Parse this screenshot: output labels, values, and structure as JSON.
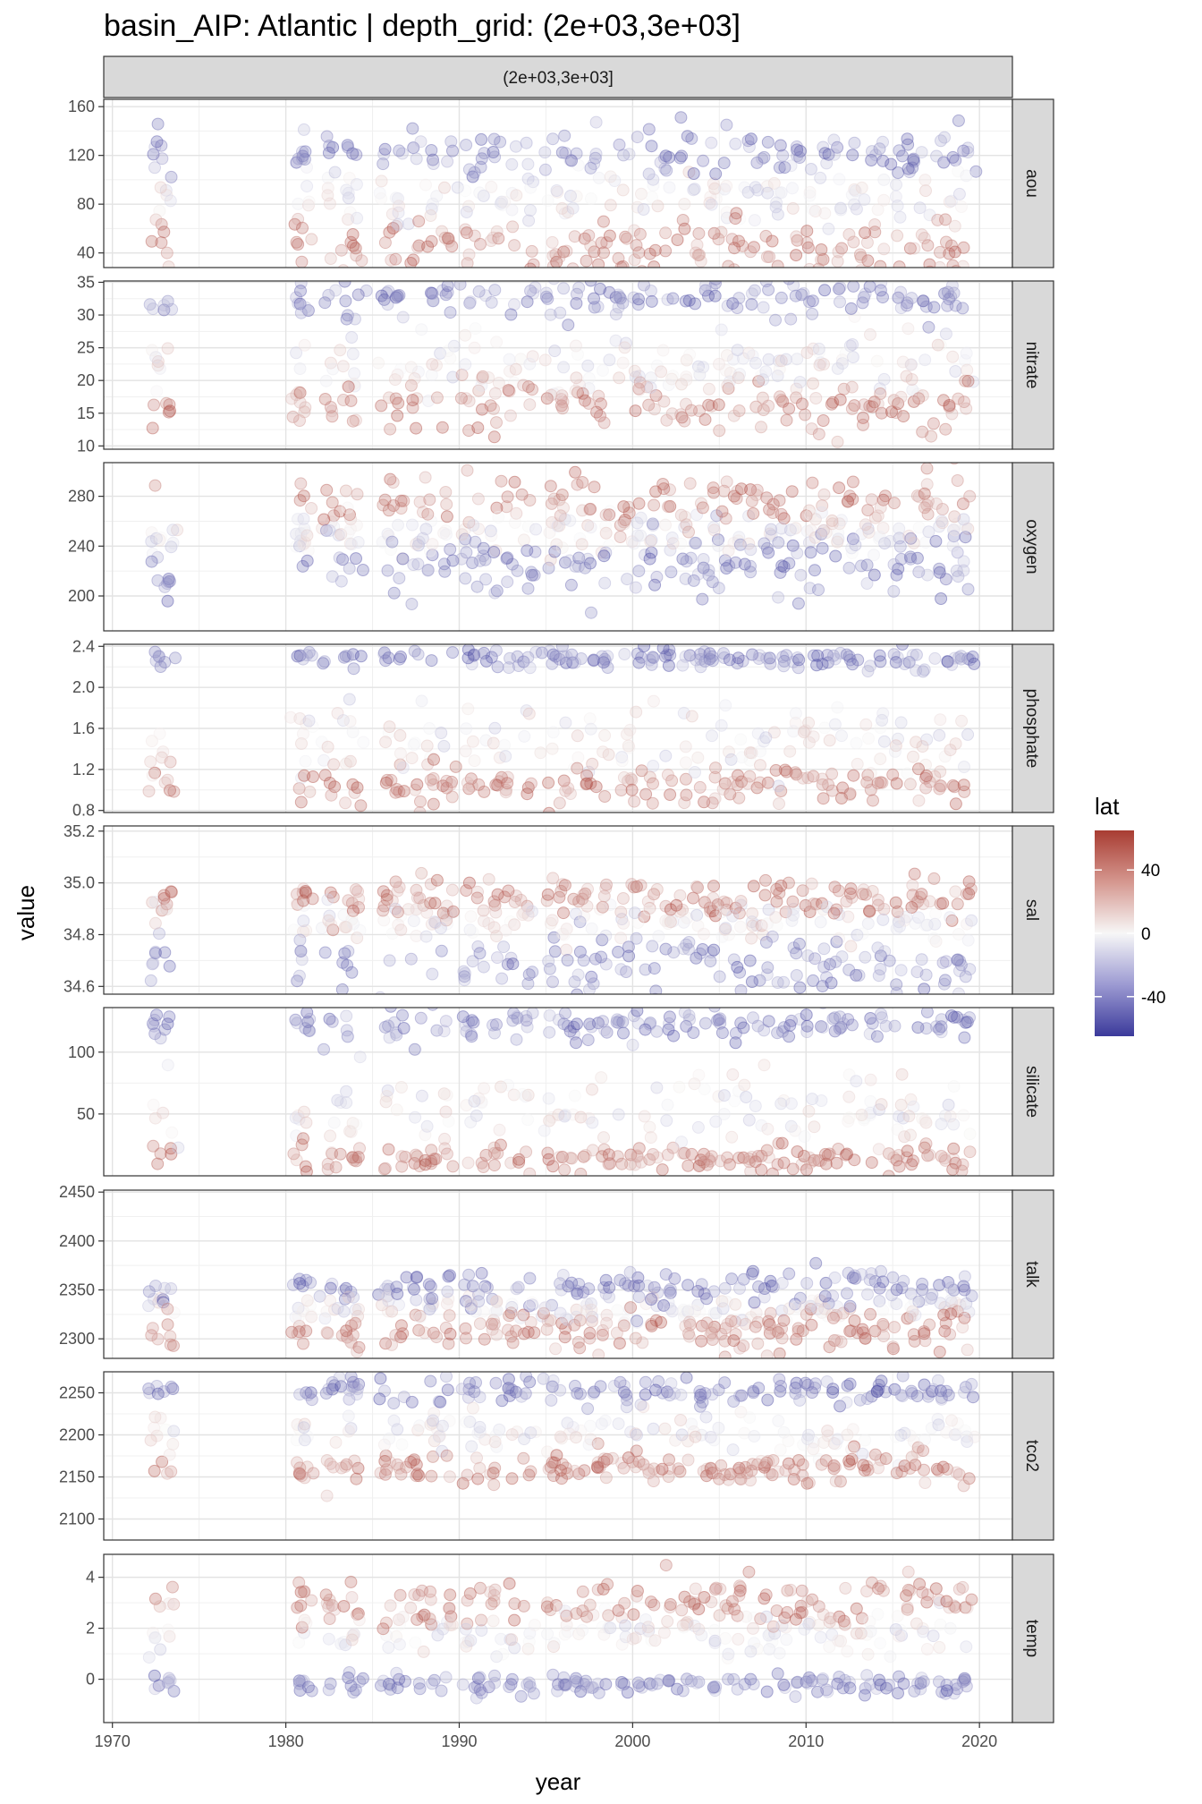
{
  "chart_data": {
    "type": "scatter",
    "title": "basin_AIP: Atlantic | depth_grid: (2e+03,3e+03]",
    "column_strip": "(2e+03,3e+03]",
    "xlabel": "year",
    "ylabel": "value",
    "xlim": [
      1969.5,
      2021.9
    ],
    "xticks": [
      1970,
      1980,
      1990,
      2000,
      2010,
      2020
    ],
    "color_scale": {
      "title": "lat",
      "low_color": "#3b3a9b",
      "mid_color": "#f7f7f7",
      "high_color": "#a83c32",
      "range": [
        -65,
        65
      ],
      "ticks": [
        40,
        0,
        -40
      ]
    },
    "panels": [
      {
        "name": "aou",
        "ylim": [
          28,
          166
        ],
        "ticks": [
          40,
          80,
          120,
          160
        ],
        "tick_labels": [
          "40",
          "80",
          "120",
          "160"
        ],
        "north_level": 45,
        "north_spread": 12,
        "south_level": 120,
        "south_spread": 10,
        "mid_level": 85
      },
      {
        "name": "nitrate",
        "ylim": [
          9.5,
          35.2
        ],
        "ticks": [
          10,
          15,
          20,
          25,
          30,
          35
        ],
        "tick_labels": [
          "10",
          "15",
          "20",
          "25",
          "30",
          "35"
        ],
        "north_level": 16,
        "north_spread": 2,
        "south_level": 32.5,
        "south_spread": 1.5,
        "mid_level": 22
      },
      {
        "name": "oxygen",
        "ylim": [
          172,
          307
        ],
        "ticks": [
          200,
          240,
          280
        ],
        "tick_labels": [
          "200",
          "240",
          "280"
        ],
        "north_level": 275,
        "north_spread": 10,
        "south_level": 225,
        "south_spread": 15,
        "mid_level": 250
      },
      {
        "name": "phosphate",
        "ylim": [
          0.78,
          2.42
        ],
        "ticks": [
          0.8,
          1.2,
          1.6,
          2.0,
          2.4
        ],
        "tick_labels": [
          "0.8",
          "1.2",
          "1.6",
          "2.0",
          "2.4"
        ],
        "north_level": 1.05,
        "north_spread": 0.1,
        "south_level": 2.28,
        "south_spread": 0.05,
        "mid_level": 1.5
      },
      {
        "name": "sal",
        "ylim": [
          34.57,
          35.22
        ],
        "ticks": [
          34.6,
          34.8,
          35.0,
          35.2
        ],
        "tick_labels": [
          "34.6",
          "34.8",
          "35.0",
          "35.2"
        ],
        "north_level": 34.94,
        "north_spread": 0.04,
        "south_level": 34.68,
        "south_spread": 0.06,
        "mid_level": 34.85
      },
      {
        "name": "silicate",
        "ylim": [
          0,
          136
        ],
        "ticks": [
          50,
          100
        ],
        "tick_labels": [
          "50",
          "100"
        ],
        "north_level": 14,
        "north_spread": 6,
        "south_level": 122,
        "south_spread": 6,
        "mid_level": 55
      },
      {
        "name": "talk",
        "ylim": [
          2280,
          2452
        ],
        "ticks": [
          2300,
          2350,
          2400,
          2450
        ],
        "tick_labels": [
          "2300",
          "2350",
          "2400",
          "2450"
        ],
        "north_level": 2308,
        "north_spread": 12,
        "south_level": 2352,
        "south_spread": 10,
        "mid_level": 2330
      },
      {
        "name": "tco2",
        "ylim": [
          2075,
          2275
        ],
        "ticks": [
          2100,
          2150,
          2200,
          2250
        ],
        "tick_labels": [
          "2100",
          "2150",
          "2200",
          "2250"
        ],
        "north_level": 2160,
        "north_spread": 10,
        "south_level": 2252,
        "south_spread": 8,
        "mid_level": 2200
      },
      {
        "name": "temp",
        "ylim": [
          -1.7,
          4.9
        ],
        "ticks": [
          0,
          2,
          4
        ],
        "tick_labels": [
          "0",
          "2",
          "4"
        ],
        "north_level": 3.0,
        "north_spread": 0.5,
        "south_level": -0.2,
        "south_spread": 0.2,
        "mid_level": 1.8
      }
    ],
    "cruise_years": [
      1972.5,
      1973.2,
      1980.8,
      1981.1,
      1982.5,
      1983.5,
      1984.0,
      1985.8,
      1986.5,
      1987.5,
      1988.4,
      1989.3,
      1990.5,
      1991.2,
      1992.1,
      1993.0,
      1994.0,
      1995.3,
      1996.0,
      1996.8,
      1997.6,
      1998.4,
      1999.5,
      2000.3,
      2001.1,
      2002.0,
      2003.0,
      2003.8,
      2004.6,
      2005.3,
      2006.1,
      2007.0,
      2007.8,
      2008.6,
      2009.4,
      2010.2,
      2011.0,
      2011.8,
      2012.6,
      2013.5,
      2014.3,
      2015.3,
      2016.1,
      2016.9,
      2017.8,
      2018.5,
      2019.2
    ]
  }
}
